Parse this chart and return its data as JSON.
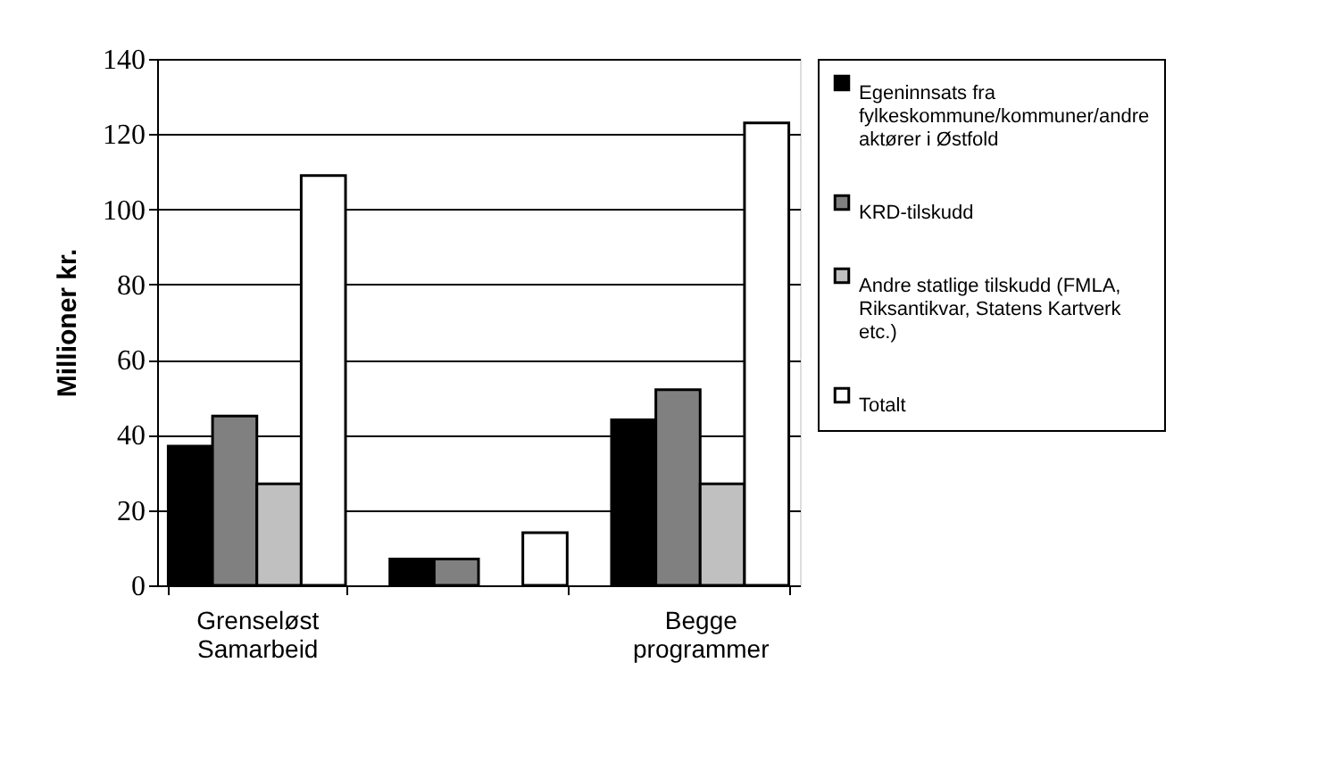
{
  "chart_data": {
    "type": "bar",
    "ylabel": "Millioner kr.",
    "categories": [
      "Grenseløst Samarbeid",
      null,
      "Begge programmer"
    ],
    "series": [
      {
        "name": "Egeninnsats fra fylkeskommune/kommuner/andre aktører i Østfold",
        "color": "#000000",
        "values": [
          37,
          7,
          44
        ]
      },
      {
        "name": "KRD-tilskudd",
        "color": "#808080",
        "values": [
          45,
          7,
          52
        ]
      },
      {
        "name": "Andre statlige tilskudd (FMLA, Riksantikvar, Statens Kartverk etc.)",
        "color": "#c0c0c0",
        "values": [
          27,
          null,
          27
        ]
      },
      {
        "name": "Totalt",
        "color": "#ffffff",
        "values": [
          109,
          14,
          123
        ]
      }
    ],
    "ylim": [
      0,
      140
    ],
    "yticks": [
      0,
      20,
      40,
      60,
      80,
      100,
      120,
      140
    ],
    "grid": "y",
    "legend": "right"
  }
}
